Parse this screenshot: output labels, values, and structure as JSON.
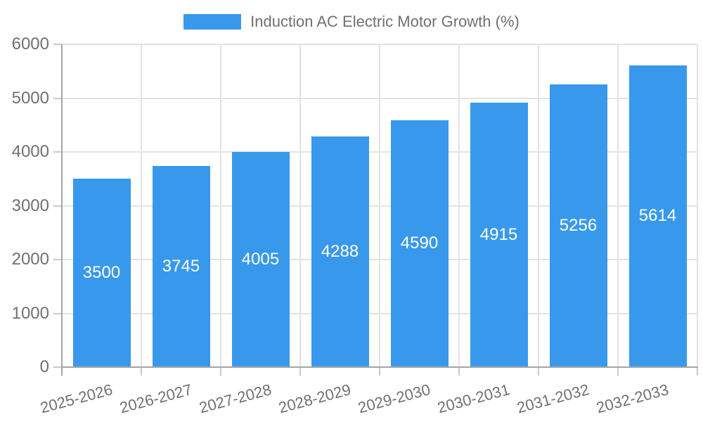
{
  "chart_data": {
    "type": "bar",
    "title": "Induction AC Electric Motor Growth (%)",
    "categories": [
      "2025-2026",
      "2026-2027",
      "2027-2028",
      "2028-2029",
      "2029-2030",
      "2030-2031",
      "2031-2032",
      "2032-2033"
    ],
    "values": [
      3500,
      3745,
      4005,
      4288,
      4590,
      4915,
      5256,
      5614
    ],
    "yticks": [
      0,
      1000,
      2000,
      3000,
      4000,
      5000,
      6000
    ],
    "ylim": [
      0,
      6000
    ],
    "grid": true,
    "legend_position": "top",
    "colors": {
      "bar": "#3899EC",
      "text": "#707070",
      "grid": "#e3e3e3",
      "tick": "#c9c9c9",
      "axis": "#a5a5a5",
      "bar_label": "#ffffff"
    }
  }
}
